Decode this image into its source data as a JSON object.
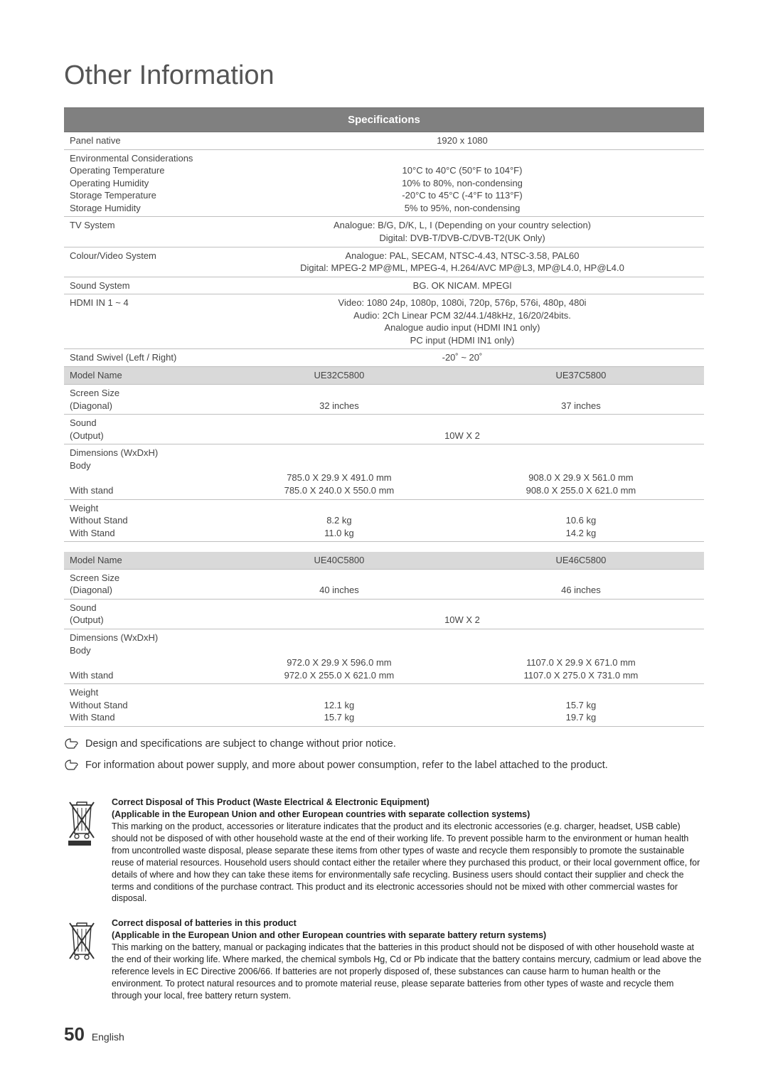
{
  "heading": "Other Information",
  "banner": "Specifications",
  "common_rows": [
    {
      "label": "Panel native",
      "value": "1920 x 1080"
    },
    {
      "label": "Environmental Considerations\nOperating Temperature\nOperating Humidity\nStorage Temperature\nStorage Humidity",
      "value": "\n10°C to 40°C (50°F to 104°F)\n10% to 80%, non-condensing\n-20°C to 45°C (-4°F to 113°F)\n5% to 95%, non-condensing"
    },
    {
      "label": "TV System",
      "value": "Analogue: B/G, D/K, L, I (Depending on your country selection)\nDigital: DVB-T/DVB-C/DVB-T2(UK Only)"
    },
    {
      "label": "Colour/Video System",
      "value": "Analogue: PAL, SECAM, NTSC-4.43, NTSC-3.58, PAL60\nDigital: MPEG-2 MP@ML, MPEG-4, H.264/AVC MP@L3, MP@L4.0, HP@L4.0"
    },
    {
      "label": "Sound System",
      "value": "BG. OK NICAM. MPEGl"
    },
    {
      "label": "HDMI IN 1 ~ 4",
      "value": "Video: 1080 24p, 1080p, 1080i, 720p, 576p, 576i, 480p, 480i\nAudio: 2Ch Linear PCM 32/44.1/48kHz, 16/20/24bits.\nAnalogue audio input (HDMI IN1 only)\nPC input (HDMI IN1 only)"
    },
    {
      "label": "Stand Swivel (Left / Right)",
      "value": "-20˚ ~ 20˚"
    }
  ],
  "model_group_1": {
    "header": {
      "label": "Model Name",
      "colA": "UE32C5800",
      "colB": "UE37C5800"
    },
    "rows": [
      {
        "label": "Screen Size\n(Diagonal)",
        "colA": "\n32 inches",
        "colB": "\n37 inches"
      },
      {
        "label": "Sound\n(Output)",
        "span": "\n10W X 2"
      },
      {
        "label": "Dimensions (WxDxH)\nBody\n\nWith stand",
        "colA": "\n\n785.0 X 29.9 X 491.0 mm\n785.0 X 240.0 X 550.0 mm",
        "colB": "\n\n908.0 X 29.9 X 561.0 mm\n908.0 X 255.0 X 621.0 mm"
      },
      {
        "label": "Weight\nWithout Stand\nWith Stand",
        "colA": "\n8.2 kg\n11.0 kg",
        "colB": "\n10.6 kg\n14.2 kg"
      }
    ]
  },
  "model_group_2": {
    "header": {
      "label": "Model Name",
      "colA": "UE40C5800",
      "colB": "UE46C5800"
    },
    "rows": [
      {
        "label": "Screen Size\n(Diagonal)",
        "colA": "\n40 inches",
        "colB": "\n46 inches"
      },
      {
        "label": "Sound\n(Output)",
        "span": "\n10W X 2"
      },
      {
        "label": "Dimensions (WxDxH)\nBody\n\nWith stand",
        "colA": "\n\n972.0 X 29.9 X 596.0 mm\n972.0 X 255.0 X 621.0 mm",
        "colB": "\n\n1107.0 X 29.9 X 671.0 mm\n1107.0 X 275.0 X 731.0 mm"
      },
      {
        "label": "Weight\nWithout Stand\nWith Stand",
        "colA": "\n12.1 kg\n15.7 kg",
        "colB": "\n15.7 kg\n19.7 kg"
      }
    ]
  },
  "notes": [
    "Design and specifications are subject to change without prior notice.",
    "For information about power supply, and more about power consumption, refer to the label attached to the product."
  ],
  "disposal": [
    {
      "title": "Correct Disposal of This Product (Waste Electrical & Electronic Equipment)",
      "subtitle": "(Applicable in the European Union and other European countries with separate collection systems)",
      "body": "This marking on the product, accessories or literature indicates that the product and its electronic accessories (e.g. charger, headset, USB cable) should not be disposed of with other household waste at the end of their working life. To prevent possible harm to the environment or human health from uncontrolled waste disposal, please separate these items from other types of waste and recycle them responsibly to promote the sustainable reuse of material resources. Household users should contact either the retailer where they purchased this product, or their local government office, for details of where and how they can take these items for environmentally safe recycling. Business users should contact their supplier and check the terms and conditions of the purchase contract. This product and its electronic accessories should not be mixed with other commercial wastes for disposal.",
      "bar": true
    },
    {
      "title": "Correct disposal of batteries in this product",
      "subtitle": "(Applicable in the European Union and other European countries with separate battery return systems)",
      "body": "This marking on the battery, manual or packaging indicates that the batteries in this product should not be disposed of with other household waste at the end of their working life. Where marked, the chemical symbols Hg, Cd or Pb indicate that the battery contains mercury, cadmium or lead above the reference levels in EC Directive 2006/66. If batteries are not properly disposed of, these substances can cause harm to human health or the environment. To protect natural resources and to promote material reuse, please separate batteries from other types of waste and recycle them through your local, free battery return system.",
      "bar": false
    }
  ],
  "footer": {
    "page": "50",
    "lang": "English"
  },
  "colors": {
    "banner_bg": "#808080",
    "header_row_bg": "#d9d9d9",
    "border": "#bfbfbf",
    "text": "#333333"
  }
}
